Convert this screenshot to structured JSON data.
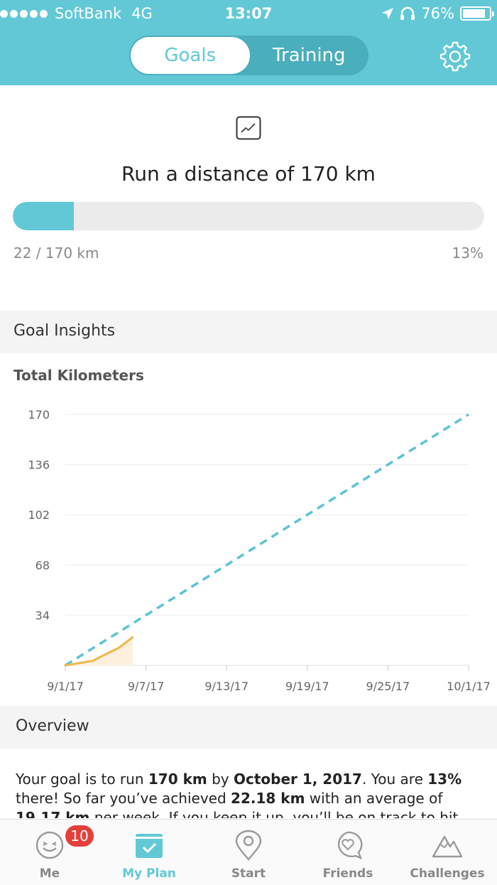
{
  "status_bar": {
    "carrier": "SoftBank",
    "network": "4G",
    "time": "13:07",
    "battery": "76%",
    "icons": [
      "signal-dots-icon",
      "location-arrow-icon",
      "headphones-icon",
      "battery-icon"
    ]
  },
  "header": {
    "tabs": [
      {
        "label": "Goals",
        "active": true
      },
      {
        "label": "Training",
        "active": false
      }
    ],
    "settings_icon": "gear-icon",
    "accent_color": "#62c8d6"
  },
  "goal": {
    "icon": "trend-chart-icon",
    "title": "Run a distance of 170 km",
    "progress_text": "22 / 170 km",
    "percent_text": "13%",
    "progress_fraction": 0.13
  },
  "insights": {
    "heading": "Goal Insights",
    "chart_title": "Total Kilometers"
  },
  "chart_data": {
    "type": "line",
    "title": "Total Kilometers",
    "y_ticks": [
      34,
      68,
      102,
      136,
      170
    ],
    "ylim": [
      0,
      170
    ],
    "x_ticks": [
      "9/1/17",
      "9/7/17",
      "9/13/17",
      "9/19/17",
      "9/25/17",
      "10/1/17"
    ],
    "x_range": [
      "9/1/17",
      "10/1/17"
    ],
    "grid": true,
    "series": [
      {
        "kind": "target-dashed",
        "color": "#5bc4d3",
        "points": [
          {
            "x": "9/1/17",
            "y": 0
          },
          {
            "x": "10/1/17",
            "y": 170
          }
        ]
      },
      {
        "kind": "actual",
        "color": "#f0b64a",
        "points": [
          {
            "x": "9/1/17",
            "y": 0
          },
          {
            "x": "9/3/17",
            "y": 3
          },
          {
            "x": "9/5/17",
            "y": 12
          },
          {
            "x": "9/6/17",
            "y": 19
          }
        ]
      }
    ]
  },
  "overview": {
    "heading": "Overview",
    "text_1": "Your goal is to run ",
    "distance": "170 km",
    "text_2": " by ",
    "date": "October 1, 2017",
    "text_3": ". You are ",
    "percent": "13%",
    "text_4": " there! So far you’ve achieved ",
    "achieved": "22.18 km",
    "text_5": " with an average of ",
    "average": "19.17 km",
    "text_6": " per week. If you keep it up, you’ll be on track to hit"
  },
  "tab_bar": {
    "items": [
      {
        "label": "Me",
        "icon": "smiley-face-icon",
        "badge": "10"
      },
      {
        "label": "My Plan",
        "icon": "calendar-check-icon",
        "active": true
      },
      {
        "label": "Start",
        "icon": "location-pin-icon"
      },
      {
        "label": "Friends",
        "icon": "heart-chat-icon"
      },
      {
        "label": "Challenges",
        "icon": "mountains-icon"
      }
    ]
  }
}
